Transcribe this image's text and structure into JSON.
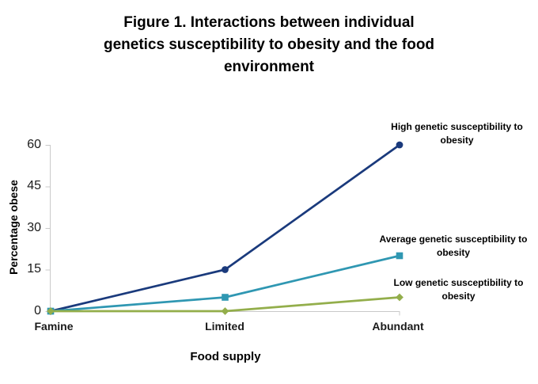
{
  "figure": {
    "title_lines": [
      "Figure 1. Interactions between individual",
      "genetics susceptibility to obesity and the food",
      "environment"
    ]
  },
  "chart_data": {
    "type": "line",
    "title": "Figure 1. Interactions between individual genetics susceptibility to obesity and the food environment",
    "xlabel": "Food supply",
    "ylabel": "Percentage obese",
    "categories": [
      "Famine",
      "Limited",
      "Abundant"
    ],
    "yticks": [
      0,
      15,
      30,
      45,
      60
    ],
    "ylim": [
      0,
      60
    ],
    "grid": false,
    "legend_position": "right-annotations",
    "axis_color": "#C9C9C9",
    "text_color": "#000000",
    "background_color": "#FFFFFF",
    "series": [
      {
        "name": "High genetic susceptibility to obesity",
        "values": [
          0,
          15,
          60
        ],
        "color": "#1A3A7C",
        "marker": "circle"
      },
      {
        "name": "Average genetic susceptibility to obesity",
        "values": [
          0,
          5,
          20
        ],
        "color": "#2F97B2",
        "marker": "square"
      },
      {
        "name": "Low genetic susceptibility to obesity",
        "values": [
          0,
          0,
          5
        ],
        "color": "#93AE4B",
        "marker": "diamond"
      }
    ]
  }
}
